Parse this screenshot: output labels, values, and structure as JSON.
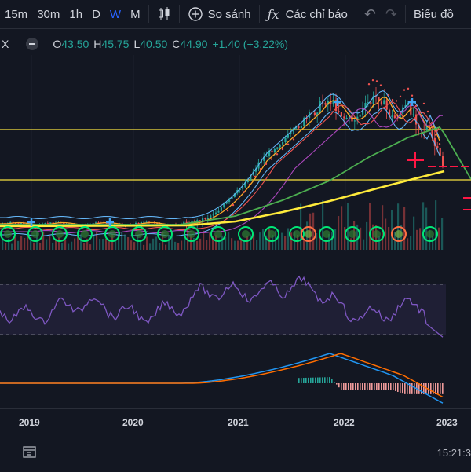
{
  "toolbar": {
    "intervals": [
      "15m",
      "30m",
      "1h",
      "D",
      "W",
      "M"
    ],
    "active_interval": "W",
    "compare_label": "So sánh",
    "indicators_label": "Các chỉ báo",
    "chart_type_label": "Biểu đồ"
  },
  "symbol_close_glyph": "X",
  "legend": {
    "open_key": "O",
    "open": "43.50",
    "high_key": "H",
    "high": "45.75",
    "low_key": "L",
    "low": "40.50",
    "close_key": "C",
    "close": "44.90",
    "change": "+1.40 (+3.22%)"
  },
  "xaxis": {
    "labels": [
      "2019",
      "2020",
      "2021",
      "2022",
      "2023"
    ]
  },
  "bottombar": {
    "time": "15:21:3"
  },
  "colors": {
    "background": "#131722",
    "up": "#26a69a",
    "down": "#ef5350",
    "rsi": "#7e57c2",
    "macd": "#2196f3",
    "signal": "#ff6d00",
    "horizontal_line": "#f7e140",
    "ma_yellow": "#ffeb3b",
    "ma_green": "#4caf50",
    "accent": "#2962ff"
  },
  "icons": [
    "candlestick-icon",
    "plus-circle-icon",
    "fx-icon",
    "undo-icon",
    "redo-icon",
    "calendar-range-icon"
  ]
}
